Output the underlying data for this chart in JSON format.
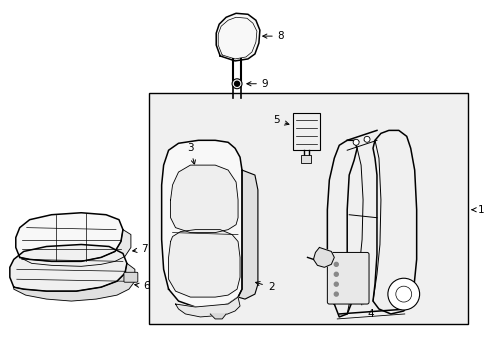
{
  "bg_color": "#ffffff",
  "line_color": "#000000",
  "box_fill": "#f0f0f0",
  "part_fill": "#ffffff",
  "shadow_fill": "#e0e0e0"
}
